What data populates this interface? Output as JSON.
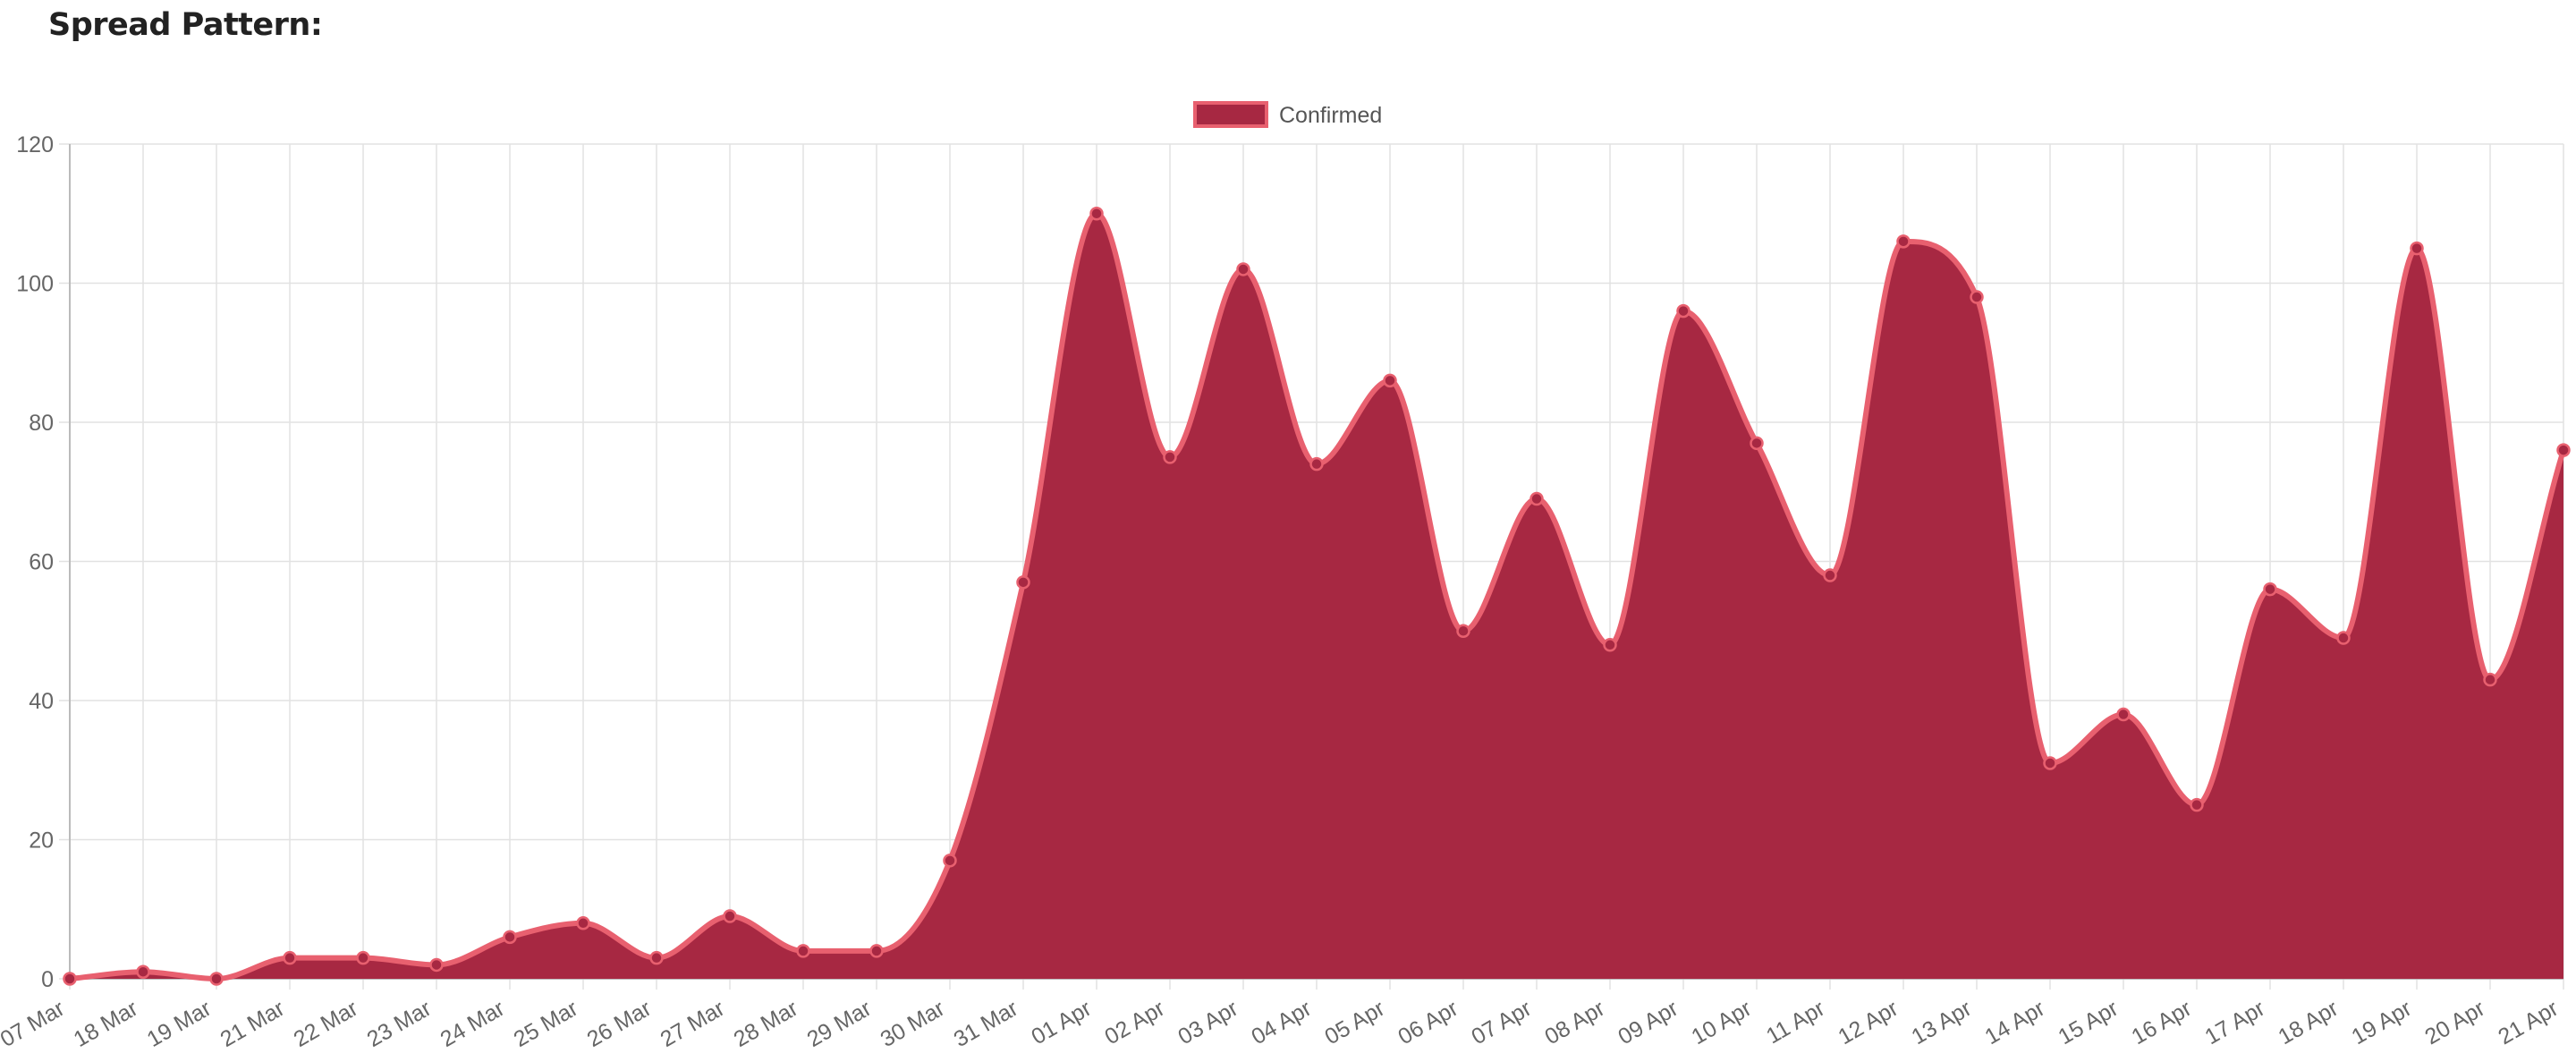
{
  "section": {
    "title": "Spread Pattern:"
  },
  "colors": {
    "fill": "#A72842",
    "line": "#E8606F",
    "grid": "#E2E2E2",
    "axis": "#BBBBBB",
    "text": "#666666"
  },
  "chart_data": {
    "type": "area",
    "title": "",
    "xlabel": "",
    "ylabel": "",
    "ylim": [
      0,
      120
    ],
    "yticks": [
      0,
      20,
      40,
      60,
      80,
      100,
      120
    ],
    "grid": true,
    "legend_position": "top",
    "categories": [
      "07 Mar",
      "18 Mar",
      "19 Mar",
      "21 Mar",
      "22 Mar",
      "23 Mar",
      "24 Mar",
      "25 Mar",
      "26 Mar",
      "27 Mar",
      "28 Mar",
      "29 Mar",
      "30 Mar",
      "31 Mar",
      "01 Apr",
      "02 Apr",
      "03 Apr",
      "04 Apr",
      "05 Apr",
      "06 Apr",
      "07 Apr",
      "08 Apr",
      "09 Apr",
      "10 Apr",
      "11 Apr",
      "12 Apr",
      "13 Apr",
      "14 Apr",
      "15 Apr",
      "16 Apr",
      "17 Apr",
      "18 Apr",
      "19 Apr",
      "20 Apr",
      "21 Apr"
    ],
    "series": [
      {
        "name": "Confirmed",
        "values": [
          0,
          1,
          0,
          3,
          3,
          2,
          6,
          8,
          3,
          9,
          4,
          4,
          17,
          57,
          110,
          75,
          102,
          74,
          86,
          50,
          69,
          48,
          96,
          77,
          58,
          106,
          98,
          31,
          38,
          25,
          56,
          49,
          105,
          43,
          76
        ]
      }
    ]
  }
}
